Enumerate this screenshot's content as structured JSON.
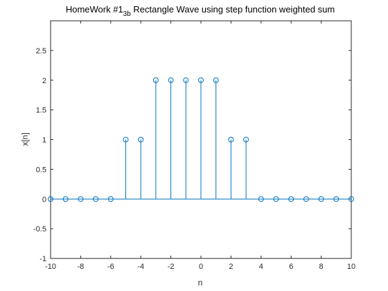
{
  "chart_data": {
    "type": "stem",
    "title": {
      "prefix": "HomeWork #1",
      "subscript": "3b",
      "suffix": " Rectangle Wave using step function weighted sum"
    },
    "xlabel": "n",
    "ylabel": "x[n]",
    "xlim": [
      -10,
      10
    ],
    "ylim": [
      -1,
      3
    ],
    "xticks": [
      -10,
      -8,
      -6,
      -4,
      -2,
      0,
      2,
      4,
      6,
      8,
      10
    ],
    "yticks": [
      -1,
      -0.5,
      0,
      0.5,
      1,
      1.5,
      2,
      2.5
    ],
    "grid": false,
    "series": [
      {
        "x": [
          -10,
          -9,
          -8,
          -7,
          -6,
          -5,
          -4,
          -3,
          -2,
          -1,
          0,
          1,
          2,
          3,
          4,
          5,
          6,
          7,
          8,
          9,
          10
        ],
        "values": [
          0,
          0,
          0,
          0,
          0,
          1,
          1,
          2,
          2,
          2,
          2,
          2,
          1,
          1,
          0,
          0,
          0,
          0,
          0,
          0,
          0
        ],
        "color": "#0072BD"
      }
    ]
  }
}
